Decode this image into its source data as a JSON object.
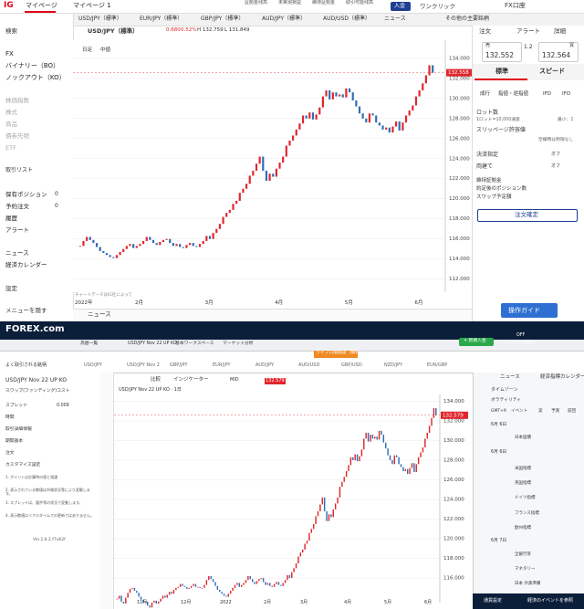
{
  "ig": {
    "logo": "IG",
    "tabs": [
      "マイページ",
      "マイページ 1"
    ],
    "top_links": [
      "証拠金残高",
      "未実現損益",
      "維持証拠金",
      "取引可能残高"
    ],
    "deposit": "入金",
    "one_click": "ワンクリック",
    "account": "FX口座",
    "market_tabs": [
      "USD/JPY（標準）",
      "EUR/JPY（標準）",
      "GBP/JPY（標準）",
      "AUD/JPY（標準）",
      "AUD/USD（標準）",
      "ニュース",
      "その他の主要銘柄"
    ],
    "sidebar": {
      "search": "検索",
      "products": [
        "FX",
        "バイナリー（BO）",
        "ノックアウト（KO）"
      ],
      "others": [
        "株価指数",
        "株式",
        "商品",
        "債券先物",
        "ETF"
      ],
      "trade_list": "取引リスト",
      "trade_items": [
        "保有ポジション",
        "予約注文",
        "履歴",
        "アラート"
      ],
      "counts": [
        "0",
        "0"
      ],
      "info_items": [
        "ニュース",
        "経済カレンダー"
      ],
      "settings": "設定",
      "hide_menu": "メニューを隠す"
    },
    "chart": {
      "symbol": "USD/JPY（標準）",
      "change": "0.680",
      "change_pct": "0.52%",
      "high": "H 132.759",
      "low": "L 131.849",
      "toolbar": [
        "日足",
        "中値"
      ],
      "last_price": "132.558",
      "note": "チャートデータはIG社によって",
      "year": "2022年",
      "months": [
        "2月",
        "3月",
        "4月",
        "5月",
        "6月"
      ],
      "news": "ニュース",
      "up_color": "#e0262d",
      "down_color": "#2f6db5",
      "ylim": [
        110.7,
        135.8
      ],
      "yticks": [
        {
          "value": 112,
          "label": "112.000"
        },
        {
          "value": 114,
          "label": "114.000"
        },
        {
          "value": 116,
          "label": "116.000"
        },
        {
          "value": 118,
          "label": "118.000"
        },
        {
          "value": 120,
          "label": "120.000"
        },
        {
          "value": 122,
          "label": "122.000"
        },
        {
          "value": 124,
          "label": "124.000"
        },
        {
          "value": 126,
          "label": "126.000"
        },
        {
          "value": 128,
          "label": "128.000"
        },
        {
          "value": 130,
          "label": "130.000"
        },
        {
          "value": 132,
          "label": "132.000"
        },
        {
          "value": 134,
          "label": "134.000"
        }
      ],
      "closes": [
        115.3,
        115.8,
        116.2,
        115.9,
        115.6,
        115.2,
        114.8,
        114.6,
        114.4,
        114.2,
        114.1,
        114.4,
        114.7,
        115.0,
        115.3,
        115.5,
        115.1,
        115.3,
        115.5,
        115.8,
        116.2,
        115.9,
        115.6,
        115.4,
        115.7,
        115.9,
        116.0,
        115.6,
        115.3,
        115.5,
        115.2,
        115.1,
        115.4,
        115.6,
        115.3,
        115.2,
        115.5,
        115.8,
        116.3,
        116.0,
        116.6,
        117.0,
        117.5,
        118.2,
        118.6,
        118.9,
        119.5,
        119.8,
        120.6,
        121.0,
        121.5,
        122.3,
        122.8,
        123.5,
        124.2,
        122.8,
        121.8,
        122.5,
        122.2,
        123.0,
        123.6,
        124.2,
        125.3,
        125.8,
        126.3,
        126.9,
        127.5,
        128.3,
        128.0,
        128.6,
        127.9,
        128.4,
        129.1,
        130.2,
        130.8,
        129.9,
        130.6,
        130.2,
        130.4,
        130.1,
        131.0,
        130.6,
        129.8,
        129.2,
        128.5,
        128.0,
        127.6,
        128.5,
        128.3,
        127.6,
        127.3,
        126.9,
        127.1,
        126.6,
        127.2,
        127.7,
        126.8,
        127.6,
        128.3,
        128.8,
        129.3,
        130.2,
        130.8,
        131.5,
        132.3,
        133.3,
        132.56
      ]
    },
    "order": {
      "tabs": [
        "注文",
        "アラート",
        "詳細"
      ],
      "sell": "売",
      "sell_price": "132.552",
      "spread": "1.2",
      "buy": "買",
      "buy_price": "132.564",
      "modes": [
        "標準",
        "スピード"
      ],
      "types": [
        "成行",
        "指値・逆指値",
        "IFD",
        "IFO"
      ],
      "lot": "ロット数",
      "lot_note": "1ロット=10,000通貨",
      "lot_min": "最小：1",
      "slippage": "スリッページ許容値",
      "slippage_note": "空欄時は制限なし",
      "settle": "決済指定",
      "hedge": "両建て",
      "off": "オフ",
      "summary": [
        "維持証拠金",
        "約定後のポジション数",
        "スワップ予定額"
      ],
      "confirm": "注文確定",
      "guide": "操作ガイド"
    }
  },
  "forex": {
    "logo": "FOREX.com",
    "tabs": [
      "為替一覧",
      "USD/JPY Nov 22 UP KO",
      "基本ワークスペース",
      "マーケット分析"
    ],
    "open_account": "ライブ口座開設（無料）",
    "new_deposit": "+ 新規入金",
    "one_click": "ワンクリック取引",
    "off": "OFF",
    "watchlist": "よく取引される銘柄",
    "symbols": [
      "USD/JPY",
      "USD/JPY Nov 2",
      "GBP/JPY",
      "EUR/JPY",
      "AUD/JPY",
      "AUD/USD",
      "GBP/USD",
      "NZD/JPY",
      "EUR/GBP"
    ],
    "left": {
      "title": "USD/JPY Nov 22 UP KO",
      "swap": "スワップ(ファンディング)コスト",
      "spread": "スプレッド",
      "spread_value": "0.009",
      "sections": [
        "時間",
        "取引詳細情報",
        "期間基本",
        "注文",
        "カスタマイズ設定"
      ],
      "notes": [
        "1. ポイントは計算時の値と相違",
        "2. 表示されている数値は市場状況等により変動します。",
        "3. スプレッドは、要件等の状況で変動します。",
        "4. 表示数値はリアルタイムでの更新ではありません。"
      ],
      "version": "Ver.2.8.2.f7a62f"
    },
    "chart": {
      "title": "USD/JPY Nov 22 UP KO · 1日",
      "compare": "比較",
      "indicator": "インジケーター",
      "mid": "MID",
      "price_box": "132.579",
      "last_price": "132.579",
      "months": [
        "11月",
        "12月",
        "2022",
        "2月",
        "3月",
        "4月",
        "5月",
        "6月"
      ],
      "up_color": "#e0262d",
      "down_color": "#2f6db5",
      "ylim": [
        113.5,
        134.7
      ],
      "yticks": [
        {
          "value": 116,
          "label": "116.000"
        },
        {
          "value": 118,
          "label": "118.000"
        },
        {
          "value": 120,
          "label": "120.000"
        },
        {
          "value": 122,
          "label": "122.000"
        },
        {
          "value": 124,
          "label": "124.000"
        },
        {
          "value": 126,
          "label": "126.000"
        },
        {
          "value": 128,
          "label": "128.000"
        },
        {
          "value": 130,
          "label": "130.000"
        },
        {
          "value": 132,
          "label": "132.000"
        },
        {
          "value": 134,
          "label": "134.000"
        }
      ],
      "closes": [
        113.9,
        114.2,
        113.6,
        113.4,
        114.0,
        114.5,
        114.9,
        115.0,
        114.7,
        114.5,
        114.1,
        113.8,
        113.5,
        113.6,
        113.2,
        113.0,
        113.5,
        113.7,
        113.4,
        113.6,
        113.9,
        114.2,
        114.0,
        114.3,
        114.6,
        114.4,
        114.8,
        115.0,
        115.1,
        115.4,
        115.2,
        115.1,
        114.9,
        115.0,
        115.2,
        115.4,
        115.1,
        115.1,
        115.0,
        115.0,
        115.3,
        115.8,
        116.2,
        115.9,
        115.6,
        115.2,
        114.8,
        114.6,
        114.4,
        114.2,
        114.1,
        114.4,
        114.7,
        115.0,
        115.3,
        115.5,
        115.1,
        115.3,
        115.5,
        115.8,
        116.2,
        115.9,
        115.6,
        115.4,
        115.7,
        115.9,
        116.0,
        115.6,
        115.3,
        115.5,
        115.2,
        115.1,
        115.4,
        115.6,
        115.3,
        115.2,
        115.5,
        115.8,
        116.3,
        116.0,
        116.6,
        117.0,
        117.5,
        118.2,
        118.6,
        118.9,
        119.5,
        119.8,
        120.6,
        121.0,
        121.5,
        122.3,
        122.8,
        123.5,
        124.2,
        122.8,
        121.8,
        122.5,
        122.2,
        123.0,
        123.6,
        124.2,
        125.3,
        125.8,
        126.3,
        126.9,
        127.5,
        128.3,
        128.0,
        128.6,
        127.9,
        128.4,
        129.1,
        130.2,
        130.8,
        129.9,
        130.6,
        130.2,
        130.4,
        130.1,
        131.0,
        130.6,
        129.8,
        129.2,
        128.5,
        128.0,
        127.6,
        128.5,
        128.3,
        127.6,
        127.3,
        126.9,
        127.1,
        126.6,
        127.2,
        127.7,
        126.8,
        127.6,
        128.3,
        128.8,
        129.3,
        130.2,
        130.8,
        131.5,
        132.3,
        133.3,
        132.58
      ]
    },
    "right": {
      "tabs": [
        "ニュース",
        "経済指標カレンダー"
      ],
      "timezone": "タイムゾーン",
      "volatility": "ボラティリティ",
      "headers": [
        "GMT+9",
        "イベント",
        "実",
        "予測",
        "前回"
      ],
      "dates": [
        "6月 6日",
        "6月 6日",
        "6月 7日"
      ],
      "events": [
        "日本国債",
        "米国指標",
        "英国指標",
        "ドイツ指標",
        "フランス指標",
        "欧州指標",
        "全銀行等",
        "マネタリー",
        "日本 外貨準備"
      ],
      "footer": [
        "通貨設定",
        "経済のイベントを参照"
      ]
    }
  }
}
